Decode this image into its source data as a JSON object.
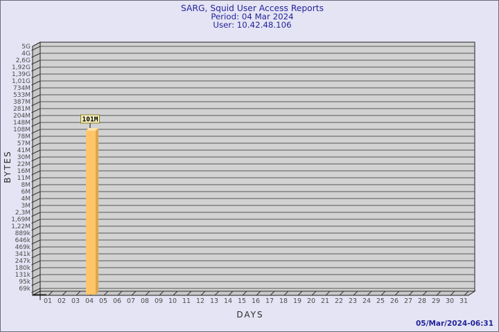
{
  "page": {
    "background": "#E4E4F4",
    "border_color": "#6A6A7E"
  },
  "header": {
    "title": "SARG, Squid User Access Reports",
    "period": "Period: 04 Mar 2024",
    "user": "User: 10.42.48.106",
    "text_color": "#23239B"
  },
  "footer": {
    "generated": "05/Mar/2024-06:31"
  },
  "chart_data": {
    "type": "bar",
    "title": "SARG, Squid User Access Reports",
    "subtitle": "Period: 04 Mar 2024",
    "user_line": "User: 10.42.48.106",
    "xlabel": "DAYS",
    "ylabel": "BYTES",
    "y_scale": "log",
    "grid": true,
    "legend_position": "none",
    "y_tick_labels": [
      "5G",
      "4G",
      "2,6G",
      "1,92G",
      "1,39G",
      "1,01G",
      "734M",
      "533M",
      "387M",
      "281M",
      "204M",
      "148M",
      "108M",
      "78M",
      "57M",
      "41M",
      "30M",
      "22M",
      "16M",
      "11M",
      "8M",
      "6M",
      "4M",
      "3M",
      "2,3M",
      "1,69M",
      "1,22M",
      "889k",
      "646k",
      "469k",
      "341k",
      "247k",
      "180k",
      "131k",
      "95k",
      "69k"
    ],
    "x_tick_labels": [
      "01",
      "02",
      "03",
      "04",
      "05",
      "06",
      "07",
      "08",
      "09",
      "10",
      "11",
      "12",
      "13",
      "14",
      "15",
      "16",
      "17",
      "18",
      "19",
      "20",
      "21",
      "22",
      "23",
      "24",
      "25",
      "26",
      "27",
      "28",
      "29",
      "30",
      "31"
    ],
    "bars": [
      {
        "x": "04",
        "label": "101M"
      }
    ],
    "colors": {
      "bar_front": "#FFC568",
      "bar_side": "#DFA64B",
      "bar_top": "#FFE2A6",
      "plot_bg": "#D2D2D2",
      "wall": "#C7C7C7",
      "grid": "#555555",
      "plot_border": "#222222",
      "tick_text": "#4A4A4A",
      "annotation_bg": "#F8F2C2",
      "annotation_border": "#8A7D20"
    }
  }
}
